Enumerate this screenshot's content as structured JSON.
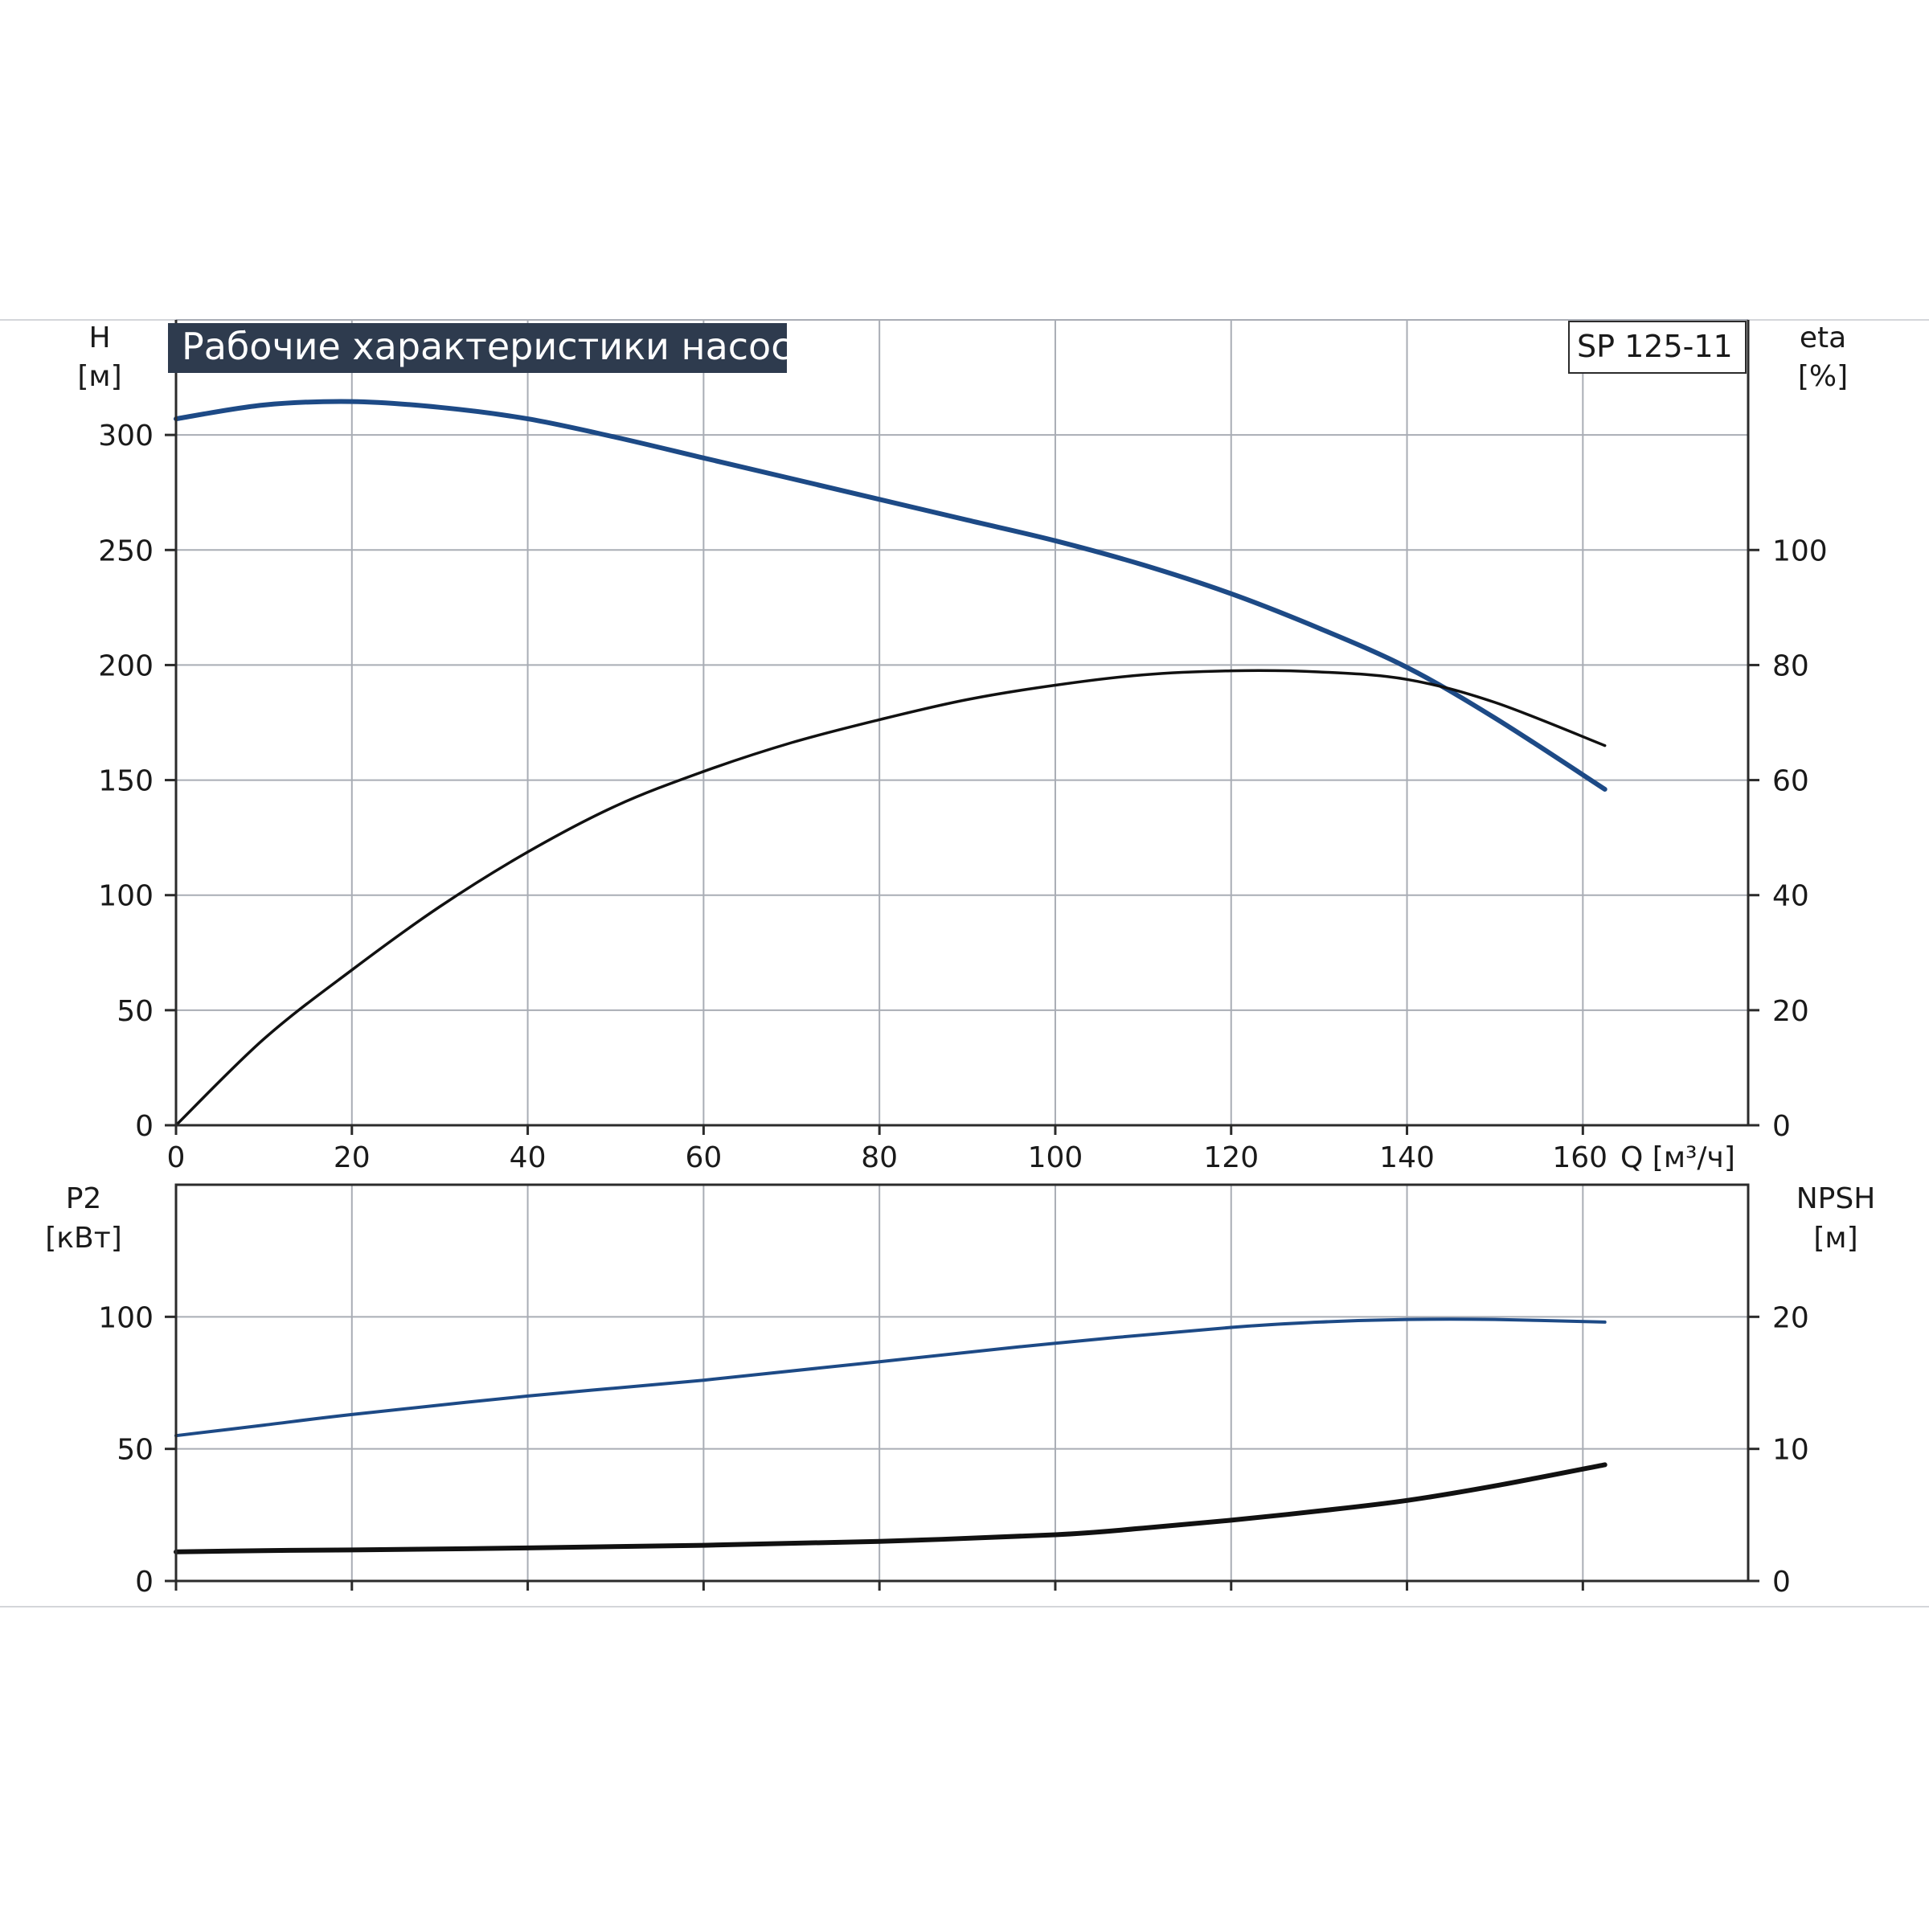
{
  "title": "Рабочие характеристики насоса",
  "model": "SP 125-11",
  "colors": {
    "head": "#1d4a86",
    "black_curve": "#111111",
    "title_bg": "#2e3b4e",
    "grid": "#a9adb5"
  },
  "x_axis": {
    "label": "Q [м³/ч]",
    "range": [
      0,
      178.8
    ],
    "ticks": [
      0,
      20,
      40,
      60,
      80,
      100,
      120,
      140,
      160
    ],
    "tick_labels": [
      "0",
      "20",
      "40",
      "60",
      "80",
      "100",
      "120",
      "140",
      "160"
    ]
  },
  "top_panel": {
    "left_axis": {
      "label_line1": "H",
      "label_line2": "[м]",
      "range": [
        0,
        350
      ],
      "ticks": [
        0,
        50,
        100,
        150,
        200,
        250,
        300
      ],
      "tick_labels": [
        "0",
        "50",
        "100",
        "150",
        "200",
        "250",
        "300"
      ]
    },
    "right_axis": {
      "label_line1": "eta",
      "label_line2": "[%]",
      "range": [
        0,
        140
      ],
      "ticks": [
        0,
        20,
        40,
        60,
        80,
        100
      ],
      "tick_labels": [
        "0",
        "20",
        "40",
        "60",
        "80",
        "100"
      ]
    }
  },
  "bottom_panel": {
    "left_axis": {
      "label_line1": "P2",
      "label_line2": "[кВт]",
      "range": [
        0,
        150
      ],
      "ticks": [
        0,
        50,
        100
      ],
      "tick_labels": [
        "0",
        "50",
        "100"
      ]
    },
    "right_axis": {
      "label_line1": "NPSH",
      "label_line2": "[м]",
      "range": [
        0,
        30
      ],
      "ticks": [
        0,
        10,
        20
      ],
      "tick_labels": [
        "0",
        "10",
        "20"
      ]
    }
  },
  "chart_data": [
    {
      "type": "line",
      "title": "Рабочие характеристики насоса",
      "xlabel": "Q [м³/ч]",
      "ylabel": "H [м]",
      "y2label": "eta [%]",
      "xlim": [
        0,
        178.8
      ],
      "ylim": [
        0,
        350
      ],
      "y2lim": [
        0,
        140
      ],
      "grid": true,
      "series": [
        {
          "axis": "left",
          "color": "#1d4a86",
          "x": [
            0,
            10,
            20,
            30,
            40,
            50,
            60,
            70,
            80,
            90,
            100,
            110,
            120,
            130,
            140,
            150,
            162.5
          ],
          "y": [
            307,
            313,
            314.5,
            312,
            307,
            299,
            290,
            281,
            272,
            263,
            254,
            243.5,
            231,
            216,
            199,
            177,
            146
          ]
        },
        {
          "axis": "right",
          "color": "#111111",
          "x": [
            0,
            10,
            20,
            30,
            40,
            50,
            60,
            70,
            80,
            90,
            100,
            110,
            120,
            130,
            140,
            150,
            162.5
          ],
          "y": [
            0,
            15,
            27,
            38,
            47.5,
            55.5,
            61.5,
            66.5,
            70.5,
            74,
            76.5,
            78.3,
            79,
            78.8,
            77.5,
            73.5,
            66
          ]
        }
      ]
    },
    {
      "type": "line",
      "xlabel": "Q [м³/ч]",
      "ylabel": "P2 [кВт]",
      "y2label": "NPSH [м]",
      "xlim": [
        0,
        178.8
      ],
      "ylim": [
        0,
        150
      ],
      "y2lim": [
        0,
        30
      ],
      "grid": true,
      "series": [
        {
          "axis": "left",
          "color": "#1d4a86",
          "x": [
            0,
            10,
            20,
            40,
            60,
            80,
            100,
            120,
            130,
            140,
            150,
            162.5
          ],
          "y": [
            55,
            59,
            63,
            70,
            76,
            83,
            90,
            96,
            98,
            99,
            99,
            98
          ]
        },
        {
          "axis": "right",
          "color": "#111111",
          "x": [
            0,
            10,
            20,
            40,
            60,
            80,
            100,
            110,
            120,
            130,
            140,
            150,
            162.5
          ],
          "y": [
            2.2,
            2.3,
            2.35,
            2.5,
            2.7,
            3.0,
            3.5,
            4.0,
            4.6,
            5.3,
            6.1,
            7.2,
            8.8
          ]
        }
      ]
    }
  ]
}
